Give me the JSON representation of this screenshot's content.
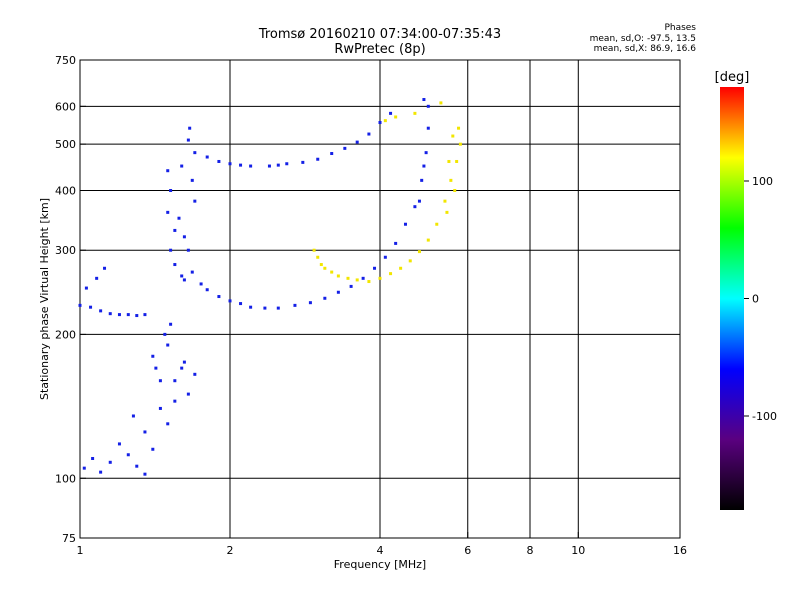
{
  "chart_data": {
    "type": "scatter",
    "title": "Tromsø 20160210 07:34:00-07:35:43",
    "subtitle": "RwPretec (8p)",
    "xlabel": "Frequency [MHz]",
    "ylabel": "Stationary phase Virtual Height [km]",
    "x_scale": "log",
    "y_scale": "log",
    "xlim": [
      1,
      16
    ],
    "ylim": [
      75,
      750
    ],
    "x_ticks": [
      1,
      2,
      4,
      6,
      8,
      10,
      16
    ],
    "y_ticks": [
      75,
      100,
      200,
      300,
      400,
      500,
      600,
      750
    ],
    "grid": true,
    "stats": {
      "heading": "Phases",
      "line_o": "mean, sd,O: -97.5, 13.5",
      "line_x": "mean, sd,X:  86.9, 16.6"
    },
    "colorbar": {
      "label": "[deg]",
      "range": [
        -180,
        180
      ],
      "ticks": [
        100,
        0,
        -100
      ],
      "colors": [
        "#000000",
        "#5a0080",
        "#0000ff",
        "#00ffff",
        "#00ff00",
        "#ffff00",
        "#ff0000"
      ]
    },
    "series": [
      {
        "phase": -97.5,
        "color": "#1420e6",
        "points": [
          [
            1.0,
            230
          ],
          [
            1.05,
            228
          ],
          [
            1.1,
            224
          ],
          [
            1.15,
            221
          ],
          [
            1.2,
            220
          ],
          [
            1.25,
            220
          ],
          [
            1.3,
            219
          ],
          [
            1.35,
            220
          ],
          [
            1.03,
            250
          ],
          [
            1.08,
            262
          ],
          [
            1.12,
            275
          ],
          [
            1.02,
            105
          ],
          [
            1.06,
            110
          ],
          [
            1.1,
            103
          ],
          [
            1.15,
            108
          ],
          [
            1.2,
            118
          ],
          [
            1.25,
            112
          ],
          [
            1.3,
            106
          ],
          [
            1.35,
            102
          ],
          [
            1.4,
            115
          ],
          [
            1.45,
            140
          ],
          [
            1.5,
            130
          ],
          [
            1.55,
            160
          ],
          [
            1.6,
            170
          ],
          [
            1.65,
            150
          ],
          [
            1.7,
            165
          ],
          [
            1.4,
            180
          ],
          [
            1.5,
            190
          ],
          [
            1.45,
            160
          ],
          [
            1.55,
            145
          ],
          [
            1.35,
            125
          ],
          [
            1.28,
            135
          ],
          [
            1.42,
            170
          ],
          [
            1.48,
            200
          ],
          [
            1.52,
            210
          ],
          [
            1.62,
            175
          ],
          [
            1.5,
            440
          ],
          [
            1.52,
            400
          ],
          [
            1.5,
            360
          ],
          [
            1.55,
            330
          ],
          [
            1.52,
            300
          ],
          [
            1.55,
            280
          ],
          [
            1.6,
            265
          ],
          [
            1.58,
            350
          ],
          [
            1.62,
            320
          ],
          [
            1.65,
            300
          ],
          [
            1.6,
            450
          ],
          [
            1.65,
            510
          ],
          [
            1.66,
            540
          ],
          [
            1.7,
            480
          ],
          [
            1.68,
            420
          ],
          [
            1.7,
            380
          ],
          [
            1.62,
            260
          ],
          [
            1.68,
            270
          ],
          [
            1.75,
            255
          ],
          [
            1.8,
            248
          ],
          [
            1.9,
            240
          ],
          [
            2.0,
            235
          ],
          [
            2.1,
            232
          ],
          [
            2.2,
            228
          ],
          [
            2.35,
            227
          ],
          [
            2.5,
            227
          ],
          [
            2.7,
            230
          ],
          [
            2.9,
            233
          ],
          [
            3.1,
            238
          ],
          [
            3.3,
            245
          ],
          [
            3.5,
            252
          ],
          [
            3.7,
            262
          ],
          [
            3.9,
            275
          ],
          [
            4.1,
            290
          ],
          [
            4.3,
            310
          ],
          [
            4.5,
            340
          ],
          [
            4.7,
            370
          ],
          [
            4.85,
            420
          ],
          [
            4.95,
            480
          ],
          [
            5.0,
            540
          ],
          [
            5.0,
            600
          ],
          [
            4.9,
            620
          ],
          [
            4.8,
            380
          ],
          [
            4.9,
            450
          ],
          [
            1.9,
            460
          ],
          [
            2.0,
            455
          ],
          [
            2.2,
            450
          ],
          [
            2.4,
            450
          ],
          [
            2.6,
            455
          ],
          [
            2.8,
            458
          ],
          [
            3.0,
            465
          ],
          [
            3.2,
            478
          ],
          [
            3.4,
            490
          ],
          [
            3.6,
            505
          ],
          [
            3.8,
            525
          ],
          [
            4.0,
            555
          ],
          [
            4.2,
            580
          ],
          [
            1.8,
            470
          ],
          [
            2.1,
            452
          ],
          [
            2.5,
            452
          ]
        ]
      },
      {
        "phase": 86.9,
        "color": "#f2e600",
        "points": [
          [
            2.95,
            300
          ],
          [
            3.0,
            290
          ],
          [
            3.05,
            280
          ],
          [
            3.1,
            275
          ],
          [
            3.2,
            270
          ],
          [
            3.3,
            265
          ],
          [
            3.45,
            262
          ],
          [
            3.6,
            260
          ],
          [
            3.8,
            258
          ],
          [
            4.0,
            262
          ],
          [
            4.2,
            268
          ],
          [
            4.4,
            275
          ],
          [
            4.6,
            285
          ],
          [
            4.8,
            298
          ],
          [
            5.0,
            315
          ],
          [
            5.2,
            340
          ],
          [
            5.4,
            380
          ],
          [
            5.55,
            420
          ],
          [
            5.7,
            460
          ],
          [
            5.8,
            500
          ],
          [
            5.75,
            540
          ],
          [
            5.6,
            520
          ],
          [
            5.5,
            460
          ],
          [
            5.65,
            400
          ],
          [
            5.45,
            360
          ],
          [
            4.7,
            580
          ],
          [
            5.3,
            610
          ],
          [
            4.1,
            560
          ],
          [
            4.3,
            570
          ]
        ]
      }
    ]
  }
}
